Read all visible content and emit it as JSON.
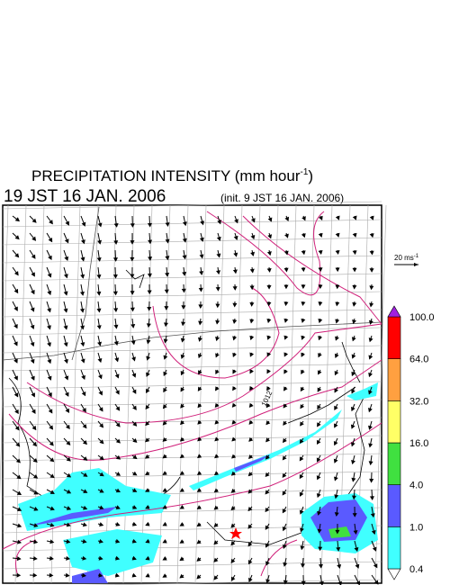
{
  "title": {
    "text": "PRECIPITATION INTENSITY (mm hour",
    "superscript": "-1",
    "close": ")"
  },
  "valid_time": "19 JST 16 JAN. 2006",
  "init_time": "(init. 9 JST 16 JAN. 2006)",
  "vector_scale": {
    "text": "20 ms",
    "superscript": "-1"
  },
  "contour_labels": [
    "1012"
  ],
  "colorbar": {
    "labels": [
      "0.4",
      "1.0",
      "4.0",
      "16.0",
      "32.0",
      "64.0",
      "100.0"
    ],
    "colors": [
      "#ffffff",
      "#40ffff",
      "#5a5aff",
      "#40e040",
      "#ffff66",
      "#ffa040",
      "#ff0000",
      "#a020e0"
    ]
  }
}
